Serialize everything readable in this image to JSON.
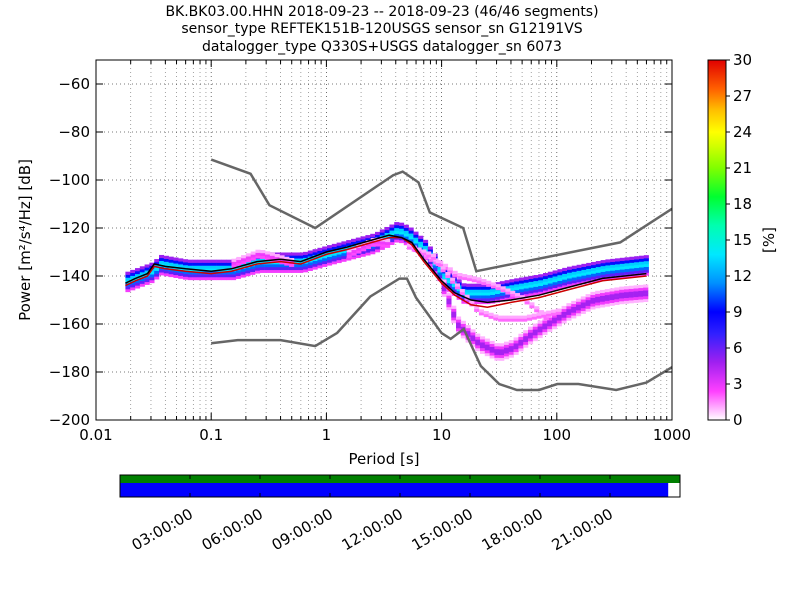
{
  "chart_data": {
    "type": "heatmap",
    "title_lines": [
      "BK.BK03.00.HHN   2018-09-23 -- 2018-09-23  (46/46 segments)",
      "sensor_type REFTEK151B-120USGS sensor_sn G12191VS",
      "datalogger_type Q330S+USGS datalogger_sn 6073"
    ],
    "xlabel": "Period [s]",
    "ylabel": "Power [m²/s⁴/Hz] [dB]",
    "xscale": "log",
    "xlim": [
      0.01,
      1000
    ],
    "ylim": [
      -200,
      -50
    ],
    "x_ticks": [
      {
        "value": 0.01,
        "label": "0.01"
      },
      {
        "value": 0.1,
        "label": "0.1"
      },
      {
        "value": 1,
        "label": "1"
      },
      {
        "value": 10,
        "label": "10"
      },
      {
        "value": 100,
        "label": "100"
      },
      {
        "value": 1000,
        "label": "1000"
      }
    ],
    "y_ticks": [
      {
        "value": -60,
        "label": "−60"
      },
      {
        "value": -80,
        "label": "−80"
      },
      {
        "value": -100,
        "label": "−100"
      },
      {
        "value": -120,
        "label": "−120"
      },
      {
        "value": -140,
        "label": "−140"
      },
      {
        "value": -160,
        "label": "−160"
      },
      {
        "value": -180,
        "label": "−180"
      },
      {
        "value": -200,
        "label": "−200"
      }
    ],
    "grid": true,
    "colorbar": {
      "label": "[%]",
      "min": 0,
      "max": 30,
      "ticks": [
        "0",
        "3",
        "6",
        "9",
        "12",
        "15",
        "18",
        "21",
        "24",
        "27",
        "30"
      ]
    },
    "noise_model_high": {
      "x": [
        0.1,
        0.22,
        0.32,
        0.8,
        3.8,
        4.6,
        6.3,
        7.9,
        15.4,
        20,
        354.8,
        1000
      ],
      "y": [
        -91.5,
        -97.4,
        -110.5,
        -120,
        -98,
        -96.5,
        -101,
        -113.5,
        -120,
        -138,
        -126,
        -112
      ]
    },
    "noise_model_low": {
      "x": [
        0.1,
        0.17,
        0.4,
        0.8,
        1.24,
        2.4,
        4.3,
        5,
        6,
        10,
        12,
        15.6,
        21.9,
        31.6,
        45,
        70,
        101,
        154,
        328,
        600,
        1000
      ],
      "y": [
        -168,
        -166.7,
        -166.7,
        -169.2,
        -163.7,
        -148.6,
        -141.1,
        -141.1,
        -149,
        -163.8,
        -166.2,
        -162.1,
        -177.5,
        -185,
        -187.5,
        -187.5,
        -185,
        -185,
        -187.5,
        -184.4,
        -178
      ]
    },
    "mean_psd": {
      "x": [
        0.018,
        0.022,
        0.028,
        0.032,
        0.04,
        0.06,
        0.1,
        0.15,
        0.25,
        0.4,
        0.6,
        1,
        1.5,
        2.5,
        3.5,
        4.5,
        5.5,
        7,
        10,
        13,
        18,
        25,
        40,
        70,
        120,
        250,
        600
      ],
      "y": [
        -143,
        -141,
        -139,
        -135,
        -136,
        -137,
        -138,
        -137,
        -134,
        -133,
        -134,
        -130,
        -128,
        -125,
        -123,
        -124,
        -126,
        -133,
        -142,
        -147,
        -150,
        -151,
        -150,
        -148,
        -145,
        -141,
        -139
      ]
    },
    "mode_psd": {
      "x": [
        0.018,
        0.022,
        0.028,
        0.032,
        0.04,
        0.06,
        0.1,
        0.15,
        0.25,
        0.4,
        0.6,
        1,
        1.5,
        2.5,
        3.5,
        4.5,
        5.5,
        7,
        10,
        13,
        18,
        25,
        40,
        70,
        120,
        250,
        600
      ],
      "y": [
        -144,
        -142,
        -140,
        -136,
        -137,
        -138,
        -139,
        -138,
        -135,
        -134,
        -135,
        -131,
        -129,
        -126,
        -124,
        -124,
        -127,
        -134,
        -143,
        -148,
        -152,
        -153,
        -151,
        -149,
        -146,
        -142,
        -140
      ]
    },
    "hist_ridges": [
      {
        "x": [
          0.018,
          0.03,
          0.035,
          0.06,
          0.1,
          0.15,
          0.25,
          0.6,
          1,
          2.5,
          4,
          5,
          7,
          10,
          15,
          25,
          40,
          70,
          120,
          250,
          600
        ],
        "y": [
          -142,
          -138,
          -135,
          -137,
          -137,
          -137,
          -134,
          -134,
          -131,
          -126,
          -121,
          -123,
          -129,
          -140,
          -147,
          -147,
          -145,
          -143,
          -140,
          -137,
          -135
        ],
        "spread": 4,
        "pct": 14
      },
      {
        "x": [
          0.15,
          0.25,
          0.5
        ],
        "y": [
          -135,
          -131,
          -135
        ],
        "spread": 2,
        "pct": 3
      },
      {
        "x": [
          1.5,
          2.5,
          3.5
        ],
        "y": [
          -131,
          -126,
          -127
        ],
        "spread": 2,
        "pct": 3
      },
      {
        "x": [
          10,
          13,
          20,
          30,
          40,
          55,
          80,
          120,
          200,
          350,
          600
        ],
        "y": [
          -145,
          -160,
          -168,
          -172,
          -170,
          -165,
          -160,
          -155,
          -150,
          -148,
          -147
        ],
        "spread": 3,
        "pct": 5
      },
      {
        "x": [
          7,
          10,
          13,
          20,
          30,
          50,
          80
        ],
        "y": [
          -132,
          -136,
          -140,
          -142,
          -145,
          -150,
          -158
        ],
        "spread": 1.5,
        "pct": 2
      },
      {
        "x": [
          5,
          8,
          10,
          15,
          20,
          30,
          50,
          100
        ],
        "y": [
          -128,
          -132,
          -138,
          -148,
          -155,
          -158,
          -158,
          -155
        ],
        "spread": 1.5,
        "pct": 2
      }
    ]
  },
  "timeline": {
    "tick_labels": [
      "03:00:00",
      "06:00:00",
      "09:00:00",
      "12:00:00",
      "15:00:00",
      "18:00:00",
      "21:00:00"
    ],
    "coverage_fraction": 0.979,
    "colors": {
      "data": "#0000ff",
      "coverage": "#008000"
    }
  }
}
